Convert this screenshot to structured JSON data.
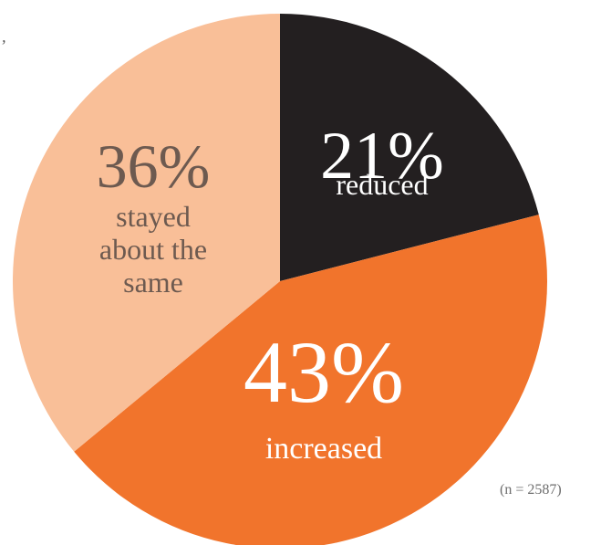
{
  "chart_data": {
    "type": "pie",
    "note": "(n = 2587)",
    "start_angle_deg": 0,
    "direction": "clockwise",
    "slices": [
      {
        "value": 21,
        "percent_label": "21%",
        "label_lines": [
          "reduced"
        ],
        "color": "#231f20",
        "text_color": "#ffffff"
      },
      {
        "value": 43,
        "percent_label": "43%",
        "label_lines": [
          "increased"
        ],
        "color": "#f1742c",
        "text_color": "#ffffff"
      },
      {
        "value": 36,
        "percent_label": "36%",
        "label_lines": [
          "stayed",
          "about the",
          "same"
        ],
        "color": "#f9bf98",
        "text_color": "#6d5a50"
      }
    ]
  },
  "corner_mark": "’"
}
